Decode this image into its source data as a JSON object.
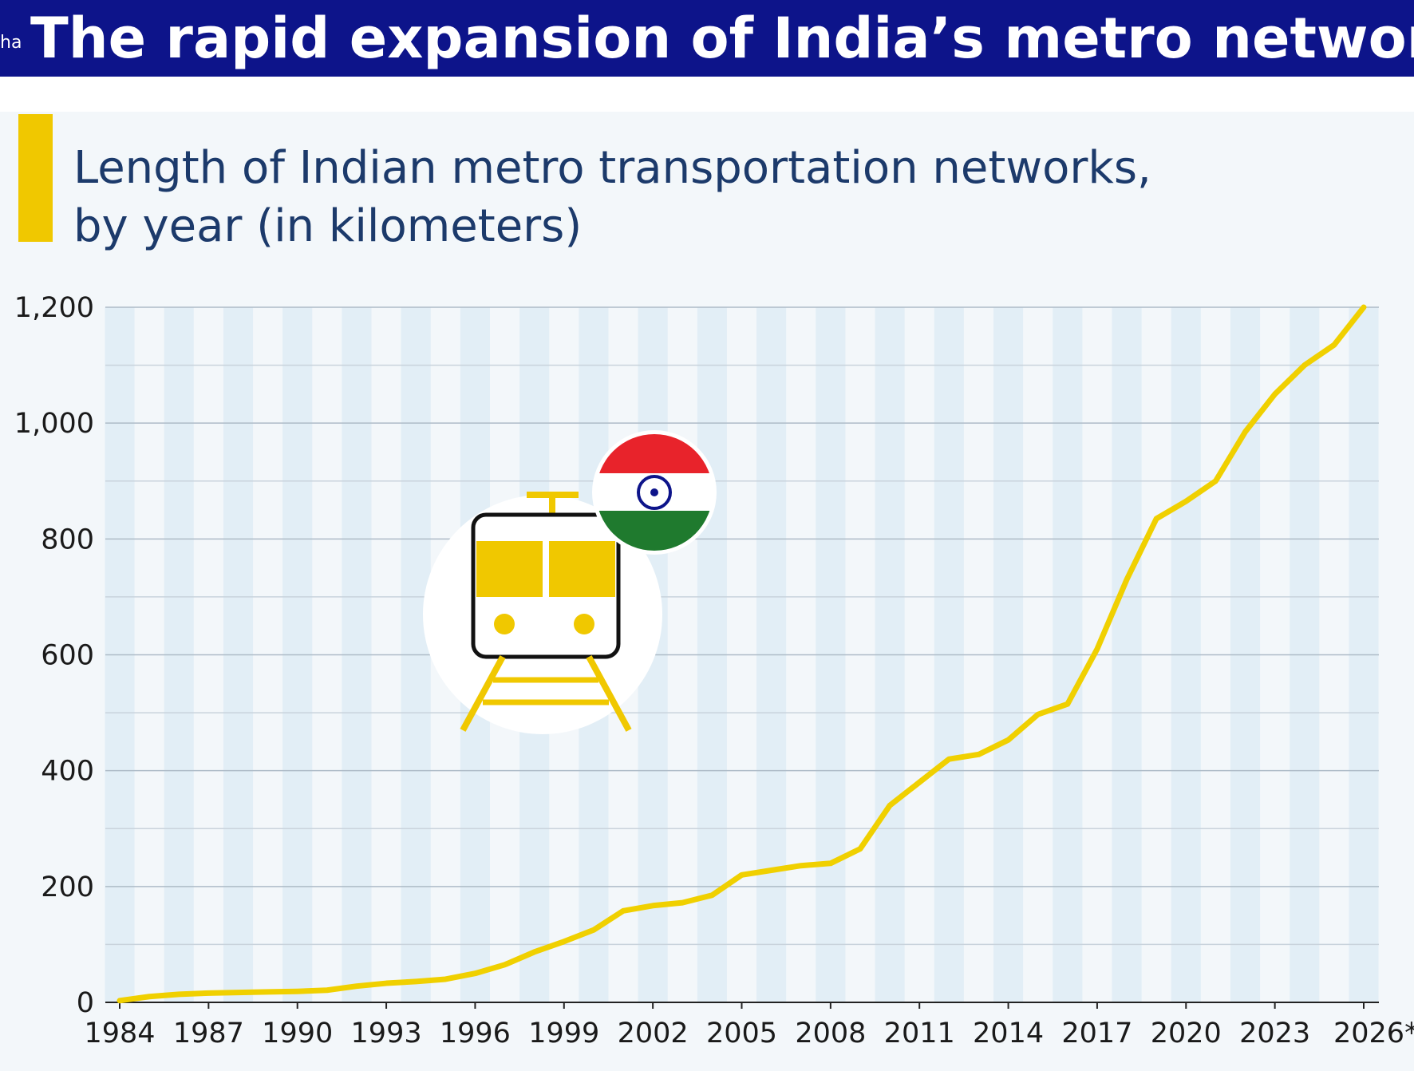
{
  "header": {
    "fragment": "ha",
    "title": "The rapid expansion of India’s metro network"
  },
  "chart_data": {
    "type": "line",
    "title": "Length of Indian metro transportation networks,",
    "subtitle": "by year (in kilometers)",
    "x": [
      1984,
      1985,
      1986,
      1987,
      1988,
      1989,
      1990,
      1991,
      1992,
      1993,
      1994,
      1995,
      1996,
      1997,
      1998,
      1999,
      2000,
      2001,
      2002,
      2003,
      2004,
      2005,
      2006,
      2007,
      2008,
      2009,
      2010,
      2011,
      2012,
      2013,
      2014,
      2015,
      2016,
      2017,
      2018,
      2019,
      2020,
      2021,
      2022,
      2023,
      2024,
      2025,
      2026
    ],
    "values": [
      3,
      10,
      14,
      16,
      17,
      18,
      19,
      21,
      28,
      33,
      36,
      40,
      50,
      65,
      87,
      105,
      125,
      158,
      167,
      172,
      185,
      220,
      228,
      236,
      240,
      265,
      340,
      380,
      420,
      428,
      453,
      497,
      515,
      610,
      730,
      835,
      865,
      900,
      985,
      1050,
      1100,
      1135,
      1200
    ],
    "color": "#f0d000",
    "xlim": [
      1984,
      2026
    ],
    "xticks": [
      1984,
      1987,
      1990,
      1993,
      1996,
      1999,
      2002,
      2005,
      2008,
      2011,
      2014,
      2017,
      2020,
      2023,
      {
        "value": 2026,
        "label": "2026*"
      }
    ],
    "ylim": [
      0,
      1200
    ],
    "yticks": [
      0,
      200,
      400,
      600,
      800,
      {
        "value": 1000,
        "label": "1,000"
      },
      {
        "value": 1200,
        "label": "1,200"
      }
    ],
    "minor_yticks": [
      100,
      300,
      500,
      700,
      900,
      1100
    ],
    "grid": true
  }
}
